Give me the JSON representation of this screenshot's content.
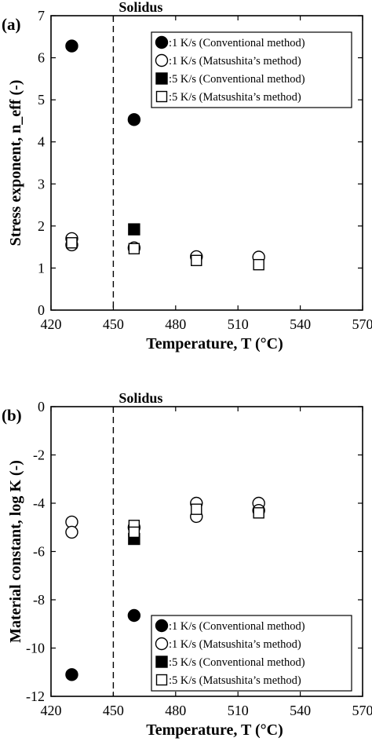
{
  "chart_data": [
    {
      "type": "scatter",
      "panel_label": "(a)",
      "annotation": "Solidus",
      "solidus_x": 450,
      "xlabel": "Temperature, T (°C)",
      "ylabel": "Stress exponent, n_eff (-)",
      "xlim": [
        420,
        570
      ],
      "ylim": [
        0,
        7
      ],
      "xticks": [
        "420",
        "450",
        "480",
        "510",
        "540",
        "570"
      ],
      "yticks": [
        "0",
        "1",
        "2",
        "3",
        "4",
        "5",
        "6",
        "7"
      ],
      "legend_position": "top-right",
      "series": [
        {
          "name": ":1 K/s (Conventional method)",
          "marker": "filled-circle",
          "points": [
            [
              430,
              6.28
            ],
            [
              460,
              4.53
            ]
          ]
        },
        {
          "name": ":1 K/s (Matsushita’s method)",
          "marker": "open-circle",
          "points": [
            [
              430,
              1.7
            ],
            [
              430,
              1.55
            ],
            [
              460,
              1.48
            ],
            [
              490,
              1.27
            ],
            [
              520,
              1.26
            ]
          ]
        },
        {
          "name": ":5 K/s (Conventional method)",
          "marker": "filled-square",
          "points": [
            [
              460,
              1.92
            ]
          ]
        },
        {
          "name": ":5 K/s (Matsushita’s method)",
          "marker": "open-square",
          "points": [
            [
              430,
              1.6
            ],
            [
              460,
              1.46
            ],
            [
              490,
              1.18
            ],
            [
              520,
              1.08
            ]
          ]
        }
      ]
    },
    {
      "type": "scatter",
      "panel_label": "(b)",
      "annotation": "Solidus",
      "solidus_x": 450,
      "xlabel": "Temperature, T (°C)",
      "ylabel": "Material constant, log K (-)",
      "xlim": [
        420,
        570
      ],
      "ylim": [
        -12,
        0
      ],
      "xticks": [
        "420",
        "450",
        "480",
        "510",
        "540",
        "570"
      ],
      "yticks": [
        "0",
        "-2",
        "-4",
        "-6",
        "-8",
        "-10",
        "-12"
      ],
      "legend_position": "bottom-right",
      "series": [
        {
          "name": ":1 K/s (Conventional method)",
          "marker": "filled-circle",
          "points": [
            [
              430,
              -11.1
            ],
            [
              460,
              -8.65
            ]
          ]
        },
        {
          "name": ":1 K/s (Matsushita’s method)",
          "marker": "open-circle",
          "points": [
            [
              430,
              -4.78
            ],
            [
              430,
              -5.2
            ],
            [
              460,
              -5.0
            ],
            [
              490,
              -4.0
            ],
            [
              490,
              -4.55
            ],
            [
              520,
              -4.0
            ],
            [
              520,
              -4.3
            ]
          ]
        },
        {
          "name": ":5 K/s (Conventional method)",
          "marker": "filled-square",
          "points": [
            [
              460,
              -5.48
            ]
          ]
        },
        {
          "name": ":5 K/s (Matsushita’s method)",
          "marker": "open-square",
          "points": [
            [
              460,
              -4.92
            ],
            [
              460,
              -5.2
            ],
            [
              490,
              -4.25
            ],
            [
              520,
              -4.4
            ]
          ]
        }
      ]
    }
  ]
}
